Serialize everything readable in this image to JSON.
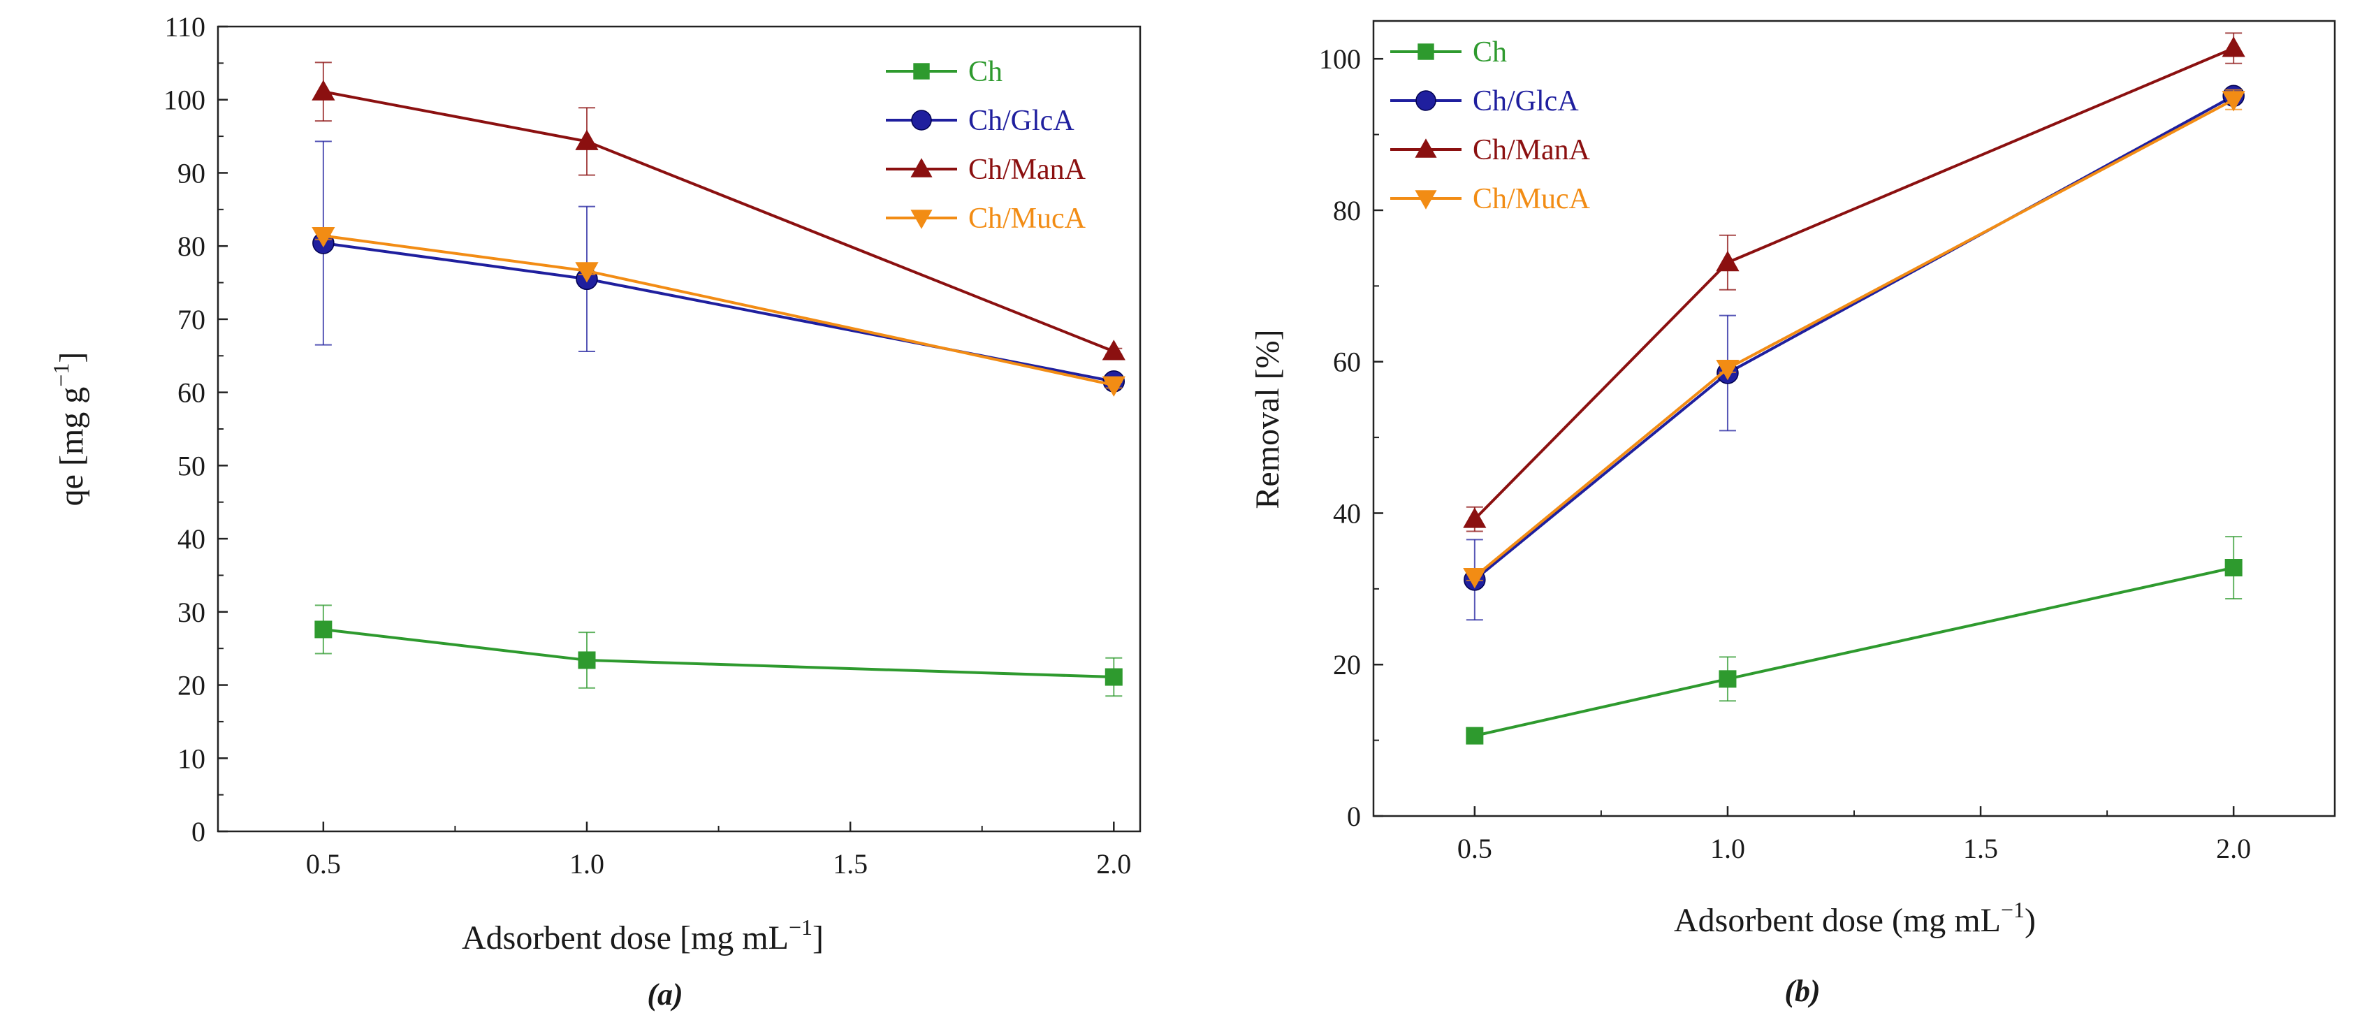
{
  "chart_data": [
    {
      "id": "a",
      "type": "line",
      "panel_label": "(a)",
      "xlabel": "Adsorbent dose [mg mL",
      "xlabel_sup": "−1",
      "xlabel_close": "]",
      "ylabel": "qe [mg g",
      "ylabel_sup": "−1",
      "ylabel_close": "]",
      "xlim": [
        0.3,
        2.05
      ],
      "ylim": [
        0,
        110
      ],
      "xticks": [
        0.5,
        1.0,
        1.5,
        2.0
      ],
      "xtick_labels": [
        "0.5",
        "1.0",
        "1.5",
        "2.0"
      ],
      "yticks": [
        0,
        10,
        20,
        30,
        40,
        50,
        60,
        70,
        80,
        90,
        100,
        110
      ],
      "ytick_labels": [
        "0",
        "10",
        "20",
        "30",
        "40",
        "50",
        "60",
        "70",
        "80",
        "90",
        "100",
        "110"
      ],
      "legend_position": "top-right",
      "x": [
        0.5,
        1.0,
        2.0
      ],
      "series": [
        {
          "name": "Ch",
          "color": "#2e9a2e",
          "marker": "square",
          "values": [
            27.6,
            23.4,
            21.1
          ],
          "errors": [
            3.3,
            3.8,
            2.6
          ]
        },
        {
          "name": "Ch/GlcA",
          "color": "#1f1f9e",
          "marker": "circle",
          "values": [
            80.4,
            75.5,
            61.5
          ],
          "errors": [
            13.9,
            9.9,
            0.6
          ]
        },
        {
          "name": "Ch/ManA",
          "color": "#8b1010",
          "marker": "triangle-up",
          "values": [
            101.1,
            94.3,
            65.6
          ],
          "errors": [
            4.0,
            4.6,
            0.4
          ]
        },
        {
          "name": "Ch/MucA",
          "color": "#f28c14",
          "marker": "triangle-down",
          "values": [
            81.4,
            76.6,
            61.0
          ],
          "errors": [
            0.5,
            0.5,
            0.4
          ]
        }
      ]
    },
    {
      "id": "b",
      "type": "line",
      "panel_label": "(b)",
      "xlabel": "Adsorbent dose (mg mL",
      "xlabel_sup": "−1",
      "xlabel_close": ")",
      "ylabel": "Removal [%]",
      "ylabel_sup": "",
      "ylabel_close": "",
      "xlim": [
        0.3,
        2.2
      ],
      "ylim": [
        0,
        105
      ],
      "xticks": [
        0.5,
        1.0,
        1.5,
        2.0
      ],
      "xtick_labels": [
        "0.5",
        "1.0",
        "1.5",
        "2.0"
      ],
      "yticks": [
        0,
        20,
        40,
        60,
        80,
        100
      ],
      "ytick_labels": [
        "0",
        "20",
        "40",
        "60",
        "80",
        "100"
      ],
      "legend_position": "top-left",
      "x": [
        0.5,
        1.0,
        2.0
      ],
      "series": [
        {
          "name": "Ch",
          "color": "#2e9a2e",
          "marker": "square",
          "values": [
            10.6,
            18.1,
            32.8
          ],
          "errors": [
            0.9,
            2.9,
            4.1
          ]
        },
        {
          "name": "Ch/GlcA",
          "color": "#1f1f9e",
          "marker": "circle",
          "values": [
            31.2,
            58.5,
            95.1
          ],
          "errors": [
            5.3,
            7.6,
            0.8
          ]
        },
        {
          "name": "Ch/ManA",
          "color": "#8b1010",
          "marker": "triangle-up",
          "values": [
            39.2,
            73.1,
            101.4
          ],
          "errors": [
            1.6,
            3.6,
            2.0
          ]
        },
        {
          "name": "Ch/MucA",
          "color": "#f28c14",
          "marker": "triangle-down",
          "values": [
            31.6,
            59.1,
            94.6
          ],
          "errors": [
            0.5,
            0.5,
            1.3
          ]
        }
      ]
    }
  ]
}
